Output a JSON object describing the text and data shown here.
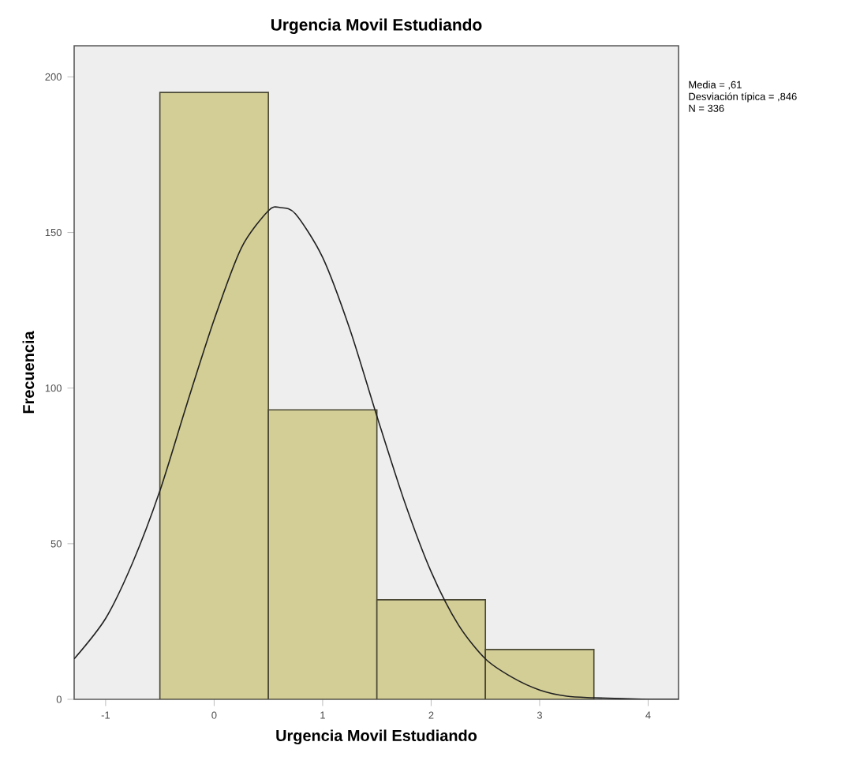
{
  "chart_data": {
    "type": "histogram",
    "title": "Urgencia Movil Estudiando",
    "xlabel": "Urgencia Movil Estudiando",
    "ylabel": "Frecuencia",
    "bins": [
      -0.5,
      0.5,
      1.5,
      2.5,
      3.5
    ],
    "values": [
      195,
      93,
      32,
      16
    ],
    "color": "#d3cd96",
    "series": [
      {
        "type": "line",
        "color": "#202020",
        "x": [
          -1.29,
          -1,
          -0.75,
          -0.5,
          -0.25,
          0,
          0.25,
          0.5,
          0.61,
          0.75,
          1,
          1.25,
          1.5,
          1.75,
          2,
          2.25,
          2.5,
          2.75,
          3,
          3.25,
          3.5,
          4,
          4.28
        ],
        "values": [
          13,
          26,
          44,
          67,
          95,
          122,
          145,
          157,
          158,
          156,
          142,
          119,
          91,
          64,
          41,
          24,
          13,
          7,
          3,
          1,
          0.5,
          0,
          0
        ]
      }
    ],
    "xlim": [
      -1.29,
      4.28
    ],
    "ylim": [
      0,
      210
    ],
    "xticks": [
      -1,
      0,
      1,
      2,
      3,
      4
    ],
    "yticks": [
      0,
      50,
      100,
      150,
      200
    ],
    "annotations": [
      "Media = ,61",
      "Desviación típica = ,846",
      "N = 336"
    ]
  }
}
